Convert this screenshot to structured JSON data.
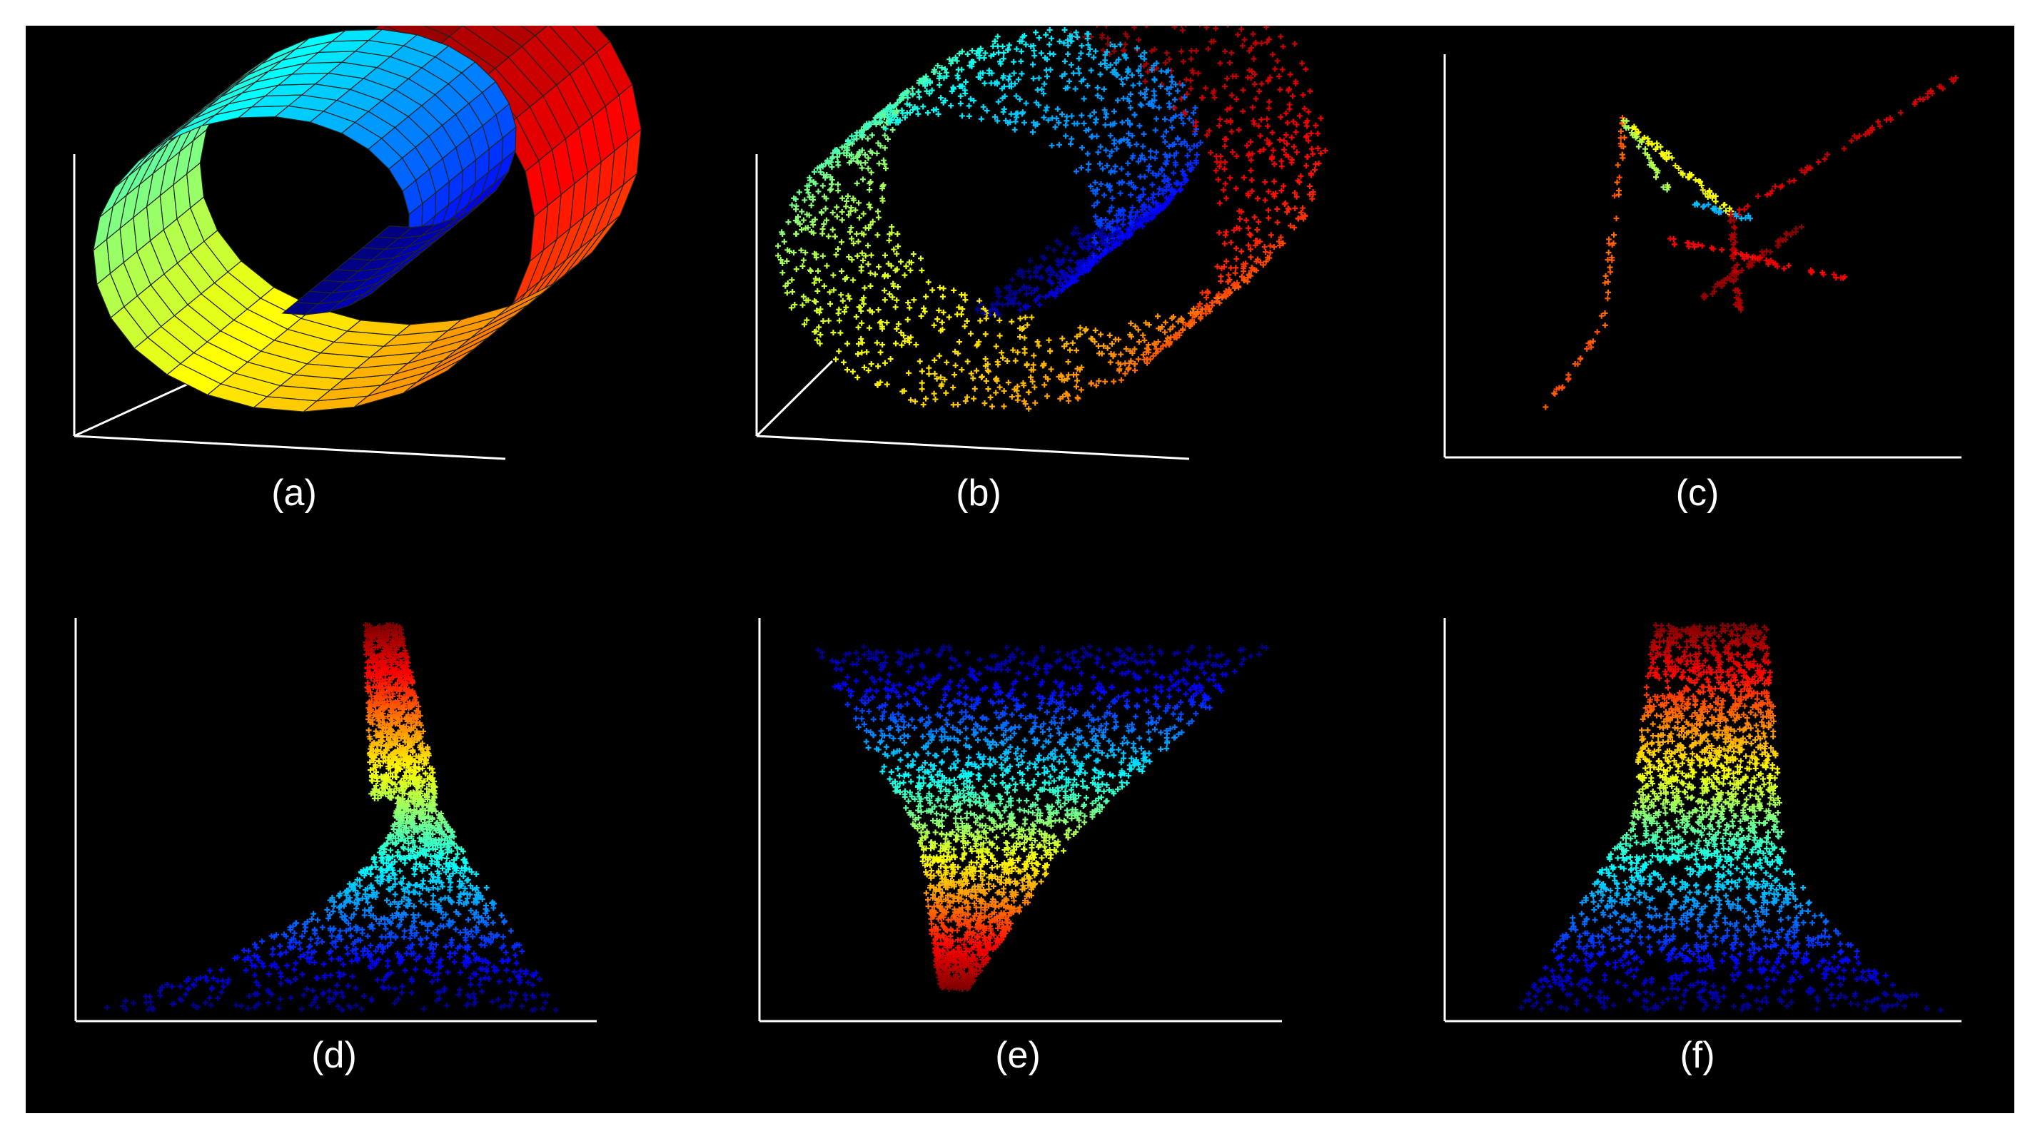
{
  "colors": {
    "background": "#000000",
    "axes": "#ffffff",
    "colormap": "jet"
  },
  "chart_data": [
    {
      "panel": "(a)",
      "type": "surface",
      "description_source": "swiss roll surface mesh",
      "xlabel": "",
      "ylabel": "",
      "zlabel": "",
      "grid": false,
      "color_variable": "position along the roll, blue (inner end) to red (outer end)"
    },
    {
      "panel": "(b)",
      "type": "scatter",
      "xlabel": "",
      "ylabel": "",
      "zlabel": "",
      "grid": false
    },
    {
      "panel": "(c)",
      "type": "scatter",
      "xlabel": "",
      "ylabel": "",
      "grid": false
    },
    {
      "panel": "(d)",
      "type": "scatter",
      "xlabel": "",
      "ylabel": "",
      "grid": false
    },
    {
      "panel": "(e)",
      "type": "scatter",
      "xlabel": "",
      "ylabel": "",
      "grid": false
    },
    {
      "panel": "(f)",
      "type": "scatter",
      "xlabel": "",
      "ylabel": "",
      "grid": false
    }
  ],
  "captions": [
    "(a)",
    "(b)",
    "(c)",
    "(d)",
    "(e)",
    "(f)"
  ]
}
